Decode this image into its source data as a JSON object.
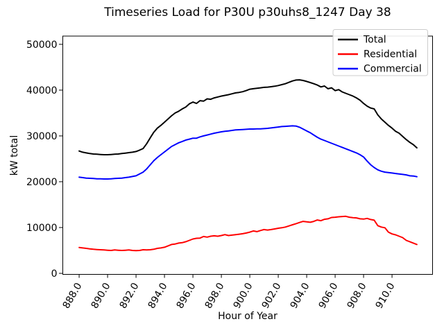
{
  "chart_data": {
    "type": "line",
    "title": "Timeseries Load for P30U p30uhs8_1247  Day 38",
    "xlabel": "Hour of Year",
    "ylabel": "kW total",
    "xlim": [
      886.85,
      912.85
    ],
    "ylim": [
      0,
      51800
    ],
    "grid": false,
    "legend_position": "upper right",
    "xticks": [
      888,
      890,
      892,
      894,
      896,
      898,
      900,
      902,
      904,
      906,
      908,
      910
    ],
    "xtick_labels": [
      "888.0",
      "890.0",
      "892.0",
      "894.0",
      "896.0",
      "898.0",
      "900.0",
      "902.0",
      "904.0",
      "906.0",
      "908.0",
      "910.0"
    ],
    "xtick_rotation": 60,
    "yticks": [
      0,
      10000,
      20000,
      30000,
      40000,
      50000
    ],
    "ytick_labels": [
      "0",
      "10000",
      "20000",
      "30000",
      "40000",
      "50000"
    ],
    "x_start": 888.0,
    "x_step": 0.25,
    "series": [
      {
        "name": "Total",
        "color": "#000000",
        "values": [
          26700,
          26450,
          26300,
          26150,
          26050,
          26000,
          25950,
          25900,
          25900,
          25950,
          26000,
          26050,
          26150,
          26250,
          26350,
          26450,
          26600,
          26900,
          27250,
          28300,
          29600,
          30800,
          31700,
          32300,
          33000,
          33700,
          34400,
          35000,
          35400,
          35900,
          36300,
          37000,
          37400,
          37100,
          37700,
          37600,
          38100,
          38000,
          38300,
          38500,
          38700,
          38850,
          39000,
          39200,
          39400,
          39500,
          39650,
          39900,
          40200,
          40300,
          40400,
          40500,
          40600,
          40650,
          40750,
          40850,
          41000,
          41200,
          41400,
          41700,
          42000,
          42200,
          42250,
          42100,
          41900,
          41650,
          41400,
          41100,
          40700,
          40900,
          40300,
          40500,
          39900,
          40100,
          39600,
          39300,
          39000,
          38700,
          38300,
          37800,
          37100,
          36500,
          36100,
          35900,
          34600,
          33700,
          33000,
          32300,
          31700,
          31000,
          30600,
          29900,
          29200,
          28600,
          28100,
          27400
        ]
      },
      {
        "name": "Residential",
        "color": "#ff0000",
        "values": [
          5650,
          5550,
          5450,
          5350,
          5250,
          5200,
          5150,
          5100,
          5050,
          5000,
          5100,
          5050,
          5000,
          5050,
          5100,
          5000,
          4950,
          5000,
          5150,
          5100,
          5150,
          5250,
          5450,
          5550,
          5700,
          6000,
          6300,
          6400,
          6600,
          6700,
          6900,
          7200,
          7500,
          7650,
          7700,
          8050,
          7900,
          8100,
          8200,
          8100,
          8250,
          8450,
          8250,
          8350,
          8450,
          8550,
          8650,
          8800,
          9000,
          9250,
          9100,
          9350,
          9550,
          9450,
          9550,
          9700,
          9850,
          9950,
          10100,
          10350,
          10600,
          10850,
          11100,
          11350,
          11250,
          11150,
          11350,
          11650,
          11500,
          11800,
          11900,
          12200,
          12250,
          12350,
          12400,
          12450,
          12250,
          12150,
          12100,
          11900,
          11850,
          12000,
          11750,
          11600,
          10400,
          10100,
          9950,
          9000,
          8600,
          8400,
          8100,
          7800,
          7200,
          6900,
          6600,
          6300
        ]
      },
      {
        "name": "Commercial",
        "color": "#0000ff",
        "values": [
          21000,
          20900,
          20800,
          20750,
          20700,
          20650,
          20650,
          20600,
          20600,
          20650,
          20700,
          20750,
          20800,
          20900,
          21000,
          21150,
          21300,
          21700,
          22100,
          22800,
          23700,
          24600,
          25300,
          25900,
          26500,
          27100,
          27700,
          28100,
          28500,
          28800,
          29100,
          29300,
          29500,
          29500,
          29800,
          30000,
          30200,
          30400,
          30600,
          30750,
          30900,
          31000,
          31100,
          31200,
          31300,
          31350,
          31400,
          31450,
          31500,
          31500,
          31550,
          31550,
          31600,
          31650,
          31750,
          31850,
          31950,
          32050,
          32100,
          32150,
          32200,
          32150,
          31900,
          31500,
          31100,
          30700,
          30200,
          29700,
          29300,
          29000,
          28700,
          28400,
          28100,
          27800,
          27500,
          27200,
          26900,
          26600,
          26300,
          25900,
          25400,
          24500,
          23700,
          23100,
          22600,
          22300,
          22100,
          22000,
          21900,
          21800,
          21700,
          21600,
          21500,
          21300,
          21250,
          21100
        ]
      }
    ]
  }
}
